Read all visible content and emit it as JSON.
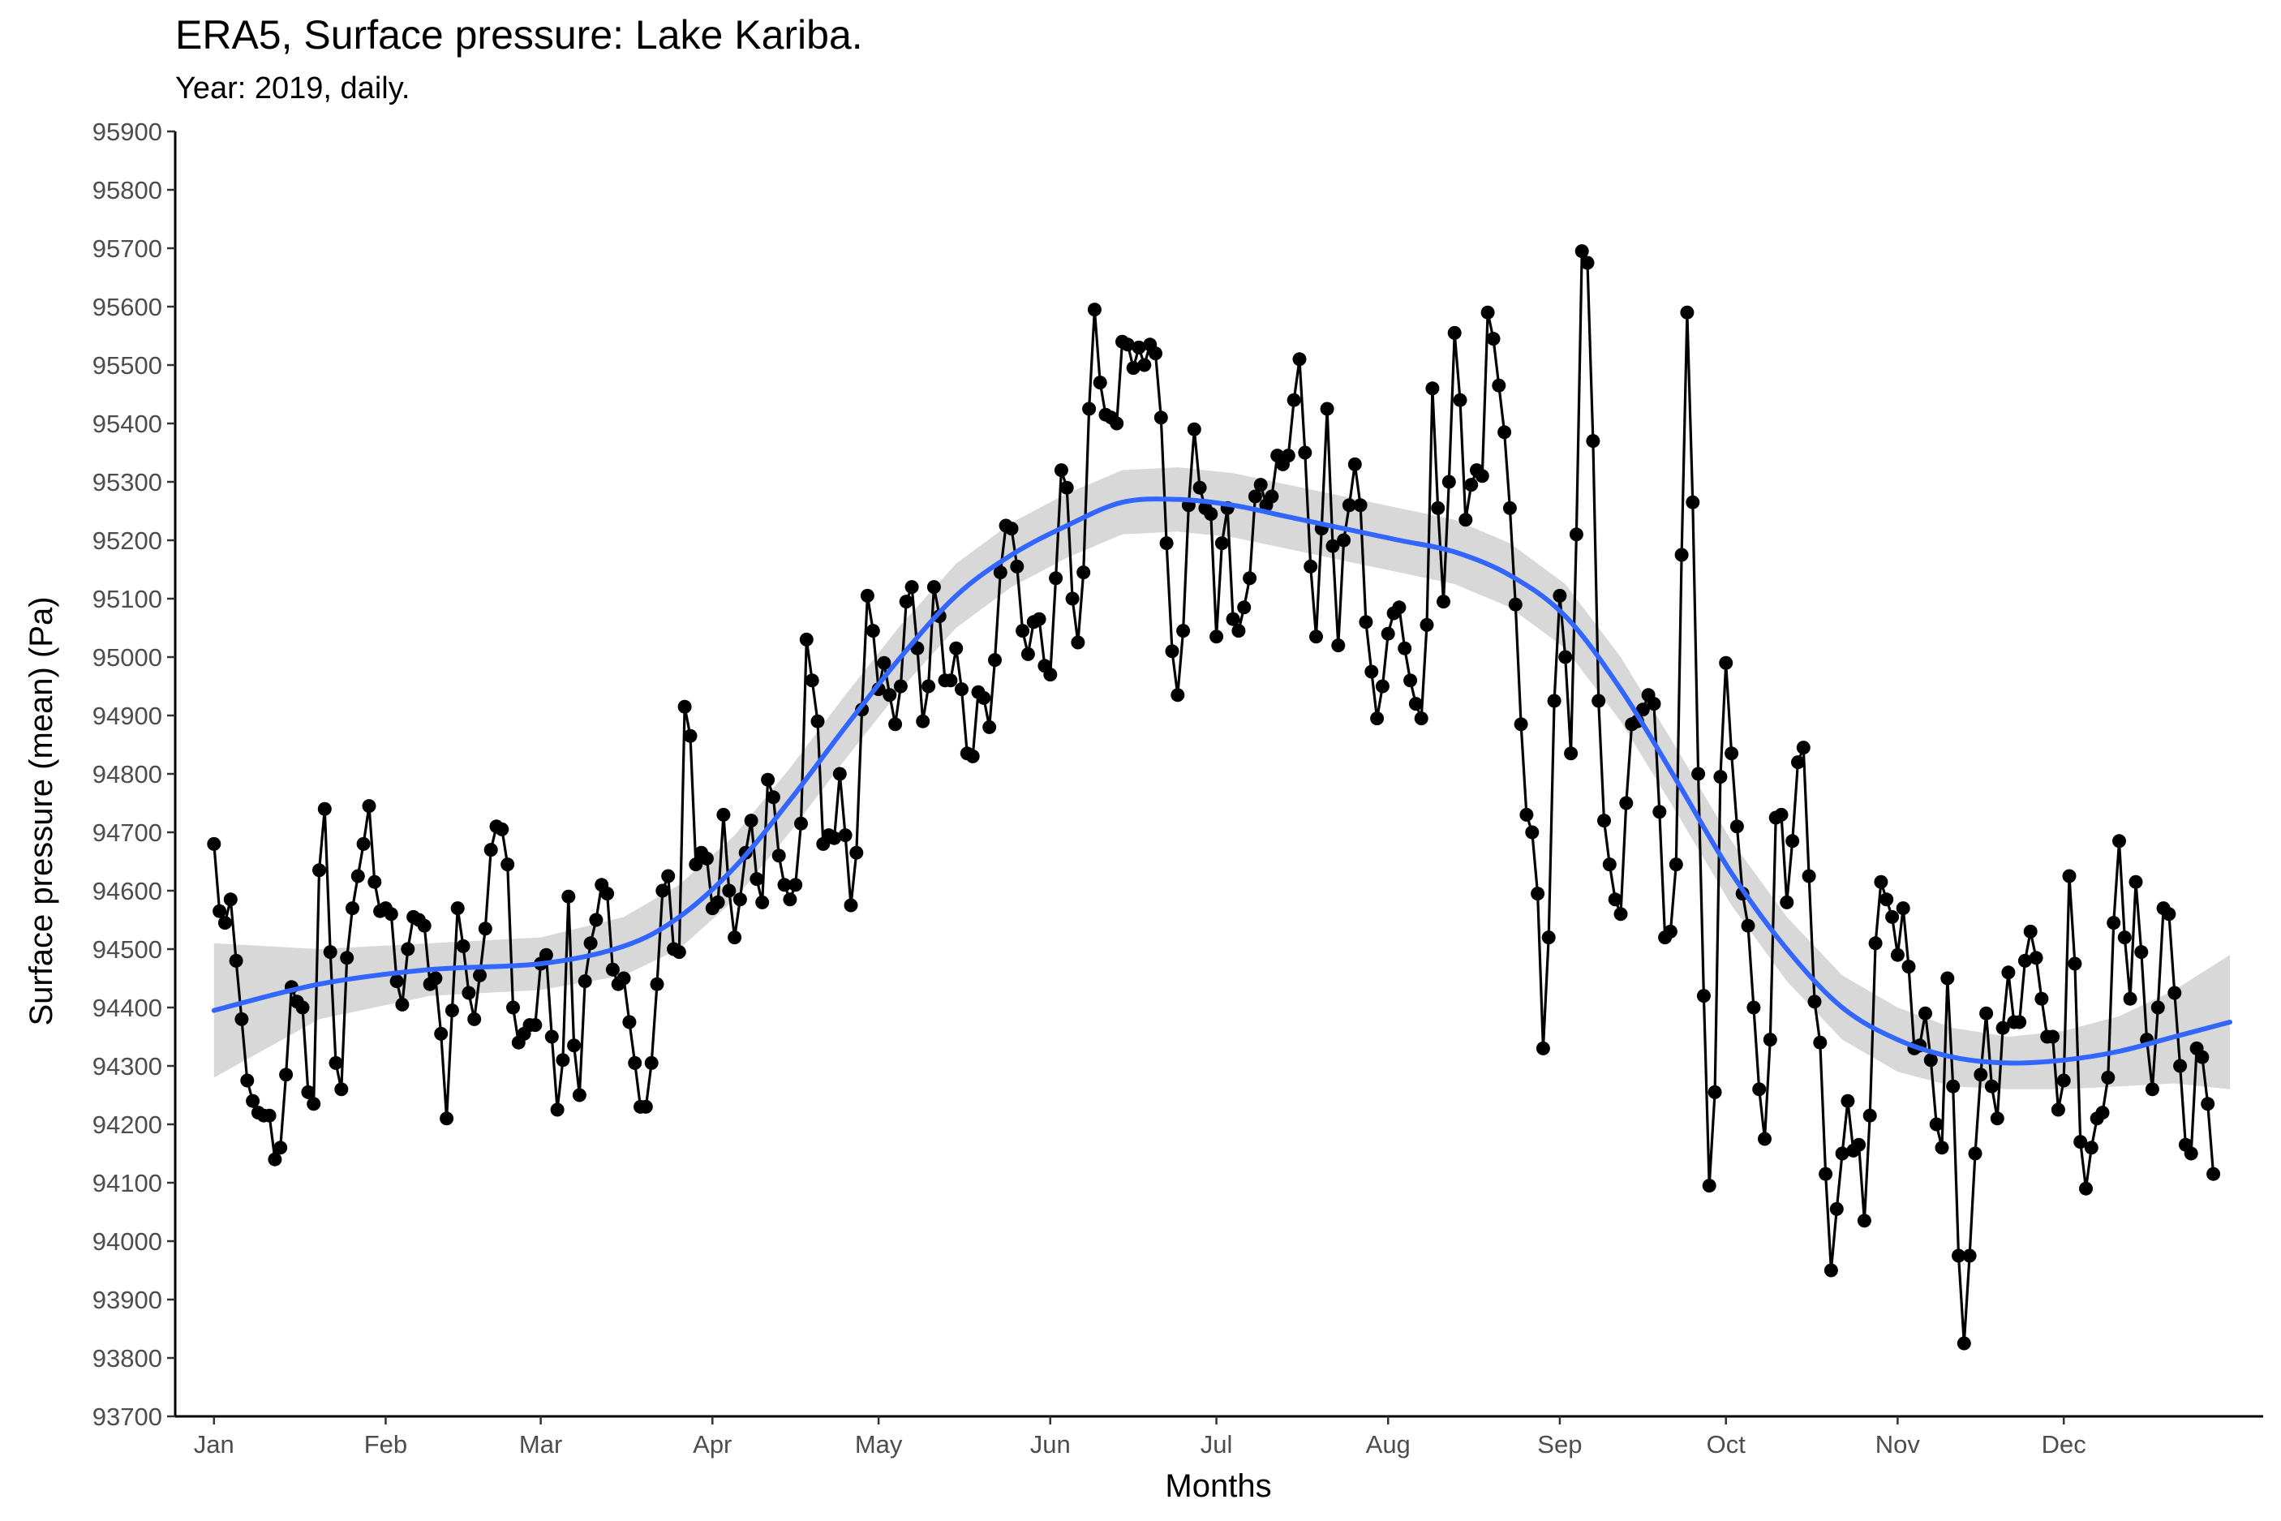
{
  "chart_data": {
    "type": "line",
    "title": "ERA5, Surface pressure: Lake Kariba.",
    "subtitle": "Year: 2019, daily.",
    "xlabel": "Months",
    "ylabel": "Surface pressure (mean) (Pa)",
    "ylim": [
      93700,
      95900
    ],
    "yticks": [
      93700,
      93800,
      93900,
      94000,
      94100,
      94200,
      94300,
      94400,
      94500,
      94600,
      94700,
      94800,
      94900,
      95000,
      95100,
      95200,
      95300,
      95400,
      95500,
      95600,
      95700,
      95800,
      95900
    ],
    "x_axis": "day of year 2019",
    "xlim": [
      -6,
      371
    ],
    "month_ticks": [
      {
        "label": "Jan",
        "day": 1
      },
      {
        "label": "Feb",
        "day": 32
      },
      {
        "label": "Mar",
        "day": 60
      },
      {
        "label": "Apr",
        "day": 91
      },
      {
        "label": "May",
        "day": 121
      },
      {
        "label": "Jun",
        "day": 152
      },
      {
        "label": "Jul",
        "day": 182
      },
      {
        "label": "Aug",
        "day": 213
      },
      {
        "label": "Sep",
        "day": 244
      },
      {
        "label": "Oct",
        "day": 274
      },
      {
        "label": "Nov",
        "day": 305
      },
      {
        "label": "Dec",
        "day": 335
      }
    ],
    "series": [
      {
        "values": [
          94680,
          94565,
          94545,
          94585,
          94480,
          94380,
          94275,
          94240,
          94220,
          94215,
          94215,
          94140,
          94160,
          94285,
          94435,
          94410,
          94400,
          94255,
          94235,
          94635,
          94740,
          94495,
          94305,
          94260,
          94485,
          94570,
          94625,
          94680,
          94745,
          94615,
          94565,
          94570,
          94560,
          94445,
          94405,
          94500,
          94555,
          94550,
          94540,
          94440,
          94450,
          94355,
          94210,
          94395,
          94570,
          94505,
          94425,
          94380,
          94455,
          94535,
          94670,
          94710,
          94705,
          94645,
          94400,
          94340,
          94355,
          94370,
          94370,
          94475,
          94490,
          94350,
          94225,
          94310,
          94590,
          94335,
          94250,
          94445,
          94510,
          94550,
          94610,
          94595,
          94465,
          94440,
          94450,
          94375,
          94305,
          94230,
          94230,
          94305,
          94440,
          94600,
          94625,
          94500,
          94495,
          94915,
          94865,
          94645,
          94665,
          94655,
          94570,
          94580,
          94730,
          94600,
          94520,
          94585,
          94665,
          94720,
          94620,
          94580,
          94790,
          94760,
          94660,
          94610,
          94585,
          94610,
          94715,
          95030,
          94960,
          94890,
          94680,
          94695,
          94690,
          94800,
          94695,
          94575,
          94665,
          94910,
          95105,
          95045,
          94945,
          94990,
          94935,
          94885,
          94950,
          95095,
          95120,
          95015,
          94890,
          94950,
          95120,
          95070,
          94960,
          94960,
          95015,
          94945,
          94835,
          94830,
          94940,
          94930,
          94880,
          94995,
          95145,
          95225,
          95220,
          95155,
          95045,
          95005,
          95060,
          95065,
          94985,
          94970,
          95135,
          95320,
          95290,
          95100,
          95025,
          95145,
          95425,
          95595,
          95470,
          95415,
          95410,
          95400,
          95540,
          95535,
          95495,
          95530,
          95500,
          95535,
          95520,
          95410,
          95195,
          95010,
          94935,
          95045,
          95260,
          95390,
          95290,
          95255,
          95245,
          95035,
          95195,
          95255,
          95065,
          95045,
          95085,
          95135,
          95275,
          95295,
          95260,
          95275,
          95345,
          95330,
          95345,
          95440,
          95510,
          95350,
          95155,
          95035,
          95220,
          95425,
          95190,
          95020,
          95200,
          95260,
          95330,
          95260,
          95060,
          94975,
          94895,
          94950,
          95040,
          95075,
          95085,
          95015,
          94960,
          94920,
          94895,
          95055,
          95460,
          95255,
          95095,
          95300,
          95555,
          95440,
          95235,
          95295,
          95320,
          95310,
          95590,
          95545,
          95465,
          95385,
          95255,
          95090,
          94885,
          94730,
          94700,
          94595,
          94330,
          94520,
          94925,
          95105,
          95000,
          94835,
          95210,
          95695,
          95675,
          95370,
          94925,
          94720,
          94645,
          94585,
          94560,
          94750,
          94885,
          94890,
          94910,
          94935,
          94920,
          94735,
          94520,
          94530,
          94645,
          95175,
          95590,
          95265,
          94800,
          94420,
          94095,
          94255,
          94795,
          94990,
          94835,
          94710,
          94595,
          94540,
          94400,
          94260,
          94175,
          94345,
          94725,
          94730,
          94580,
          94685,
          94820,
          94845,
          94625,
          94410,
          94340,
          94115,
          93950,
          94055,
          94150,
          94240,
          94155,
          94165,
          94035,
          94215,
          94510,
          94615,
          94585,
          94555,
          94490,
          94570,
          94470,
          94330,
          94335,
          94390,
          94310,
          94200,
          94160,
          94450,
          94265,
          93975,
          93825,
          93975,
          94150,
          94285,
          94390,
          94265,
          94210,
          94365,
          94460,
          94375,
          94375,
          94480,
          94530,
          94485,
          94415,
          94350,
          94350,
          94225,
          94275,
          94625,
          94475,
          94170,
          94090,
          94160,
          94210,
          94220,
          94280,
          94545,
          94685,
          94520,
          94415,
          94615,
          94495,
          94345,
          94260,
          94400,
          94570,
          94560,
          94425,
          94300,
          94165,
          94150,
          94330,
          94315,
          94235,
          94115
        ]
      },
      {
        "name": "smooth",
        "x": [
          1,
          20,
          40,
          60,
          75,
          85,
          95,
          105,
          115,
          125,
          135,
          145,
          155,
          165,
          175,
          185,
          195,
          205,
          215,
          225,
          235,
          245,
          255,
          265,
          275,
          285,
          295,
          305,
          315,
          325,
          335,
          345,
          355,
          365
        ],
        "values": [
          94395,
          94440,
          94465,
          94475,
          94505,
          94555,
          94640,
          94755,
          94880,
          95000,
          95105,
          95175,
          95225,
          95265,
          95270,
          95260,
          95240,
          95220,
          95200,
          95180,
          95140,
          95070,
          94945,
          94790,
          94630,
          94500,
          94400,
          94345,
          94315,
          94305,
          94310,
          94325,
          94350,
          94375
        ],
        "ci_half_width": [
          115,
          60,
          45,
          45,
          50,
          55,
          55,
          55,
          55,
          55,
          55,
          55,
          55,
          55,
          55,
          55,
          55,
          55,
          55,
          55,
          55,
          55,
          55,
          55,
          55,
          55,
          55,
          55,
          50,
          45,
          50,
          60,
          80,
          115
        ],
        "color": "#3366FF",
        "band_color": "#c8c8c8"
      }
    ],
    "point_color": "#000000",
    "line_color": "#000000",
    "grid": false
  }
}
